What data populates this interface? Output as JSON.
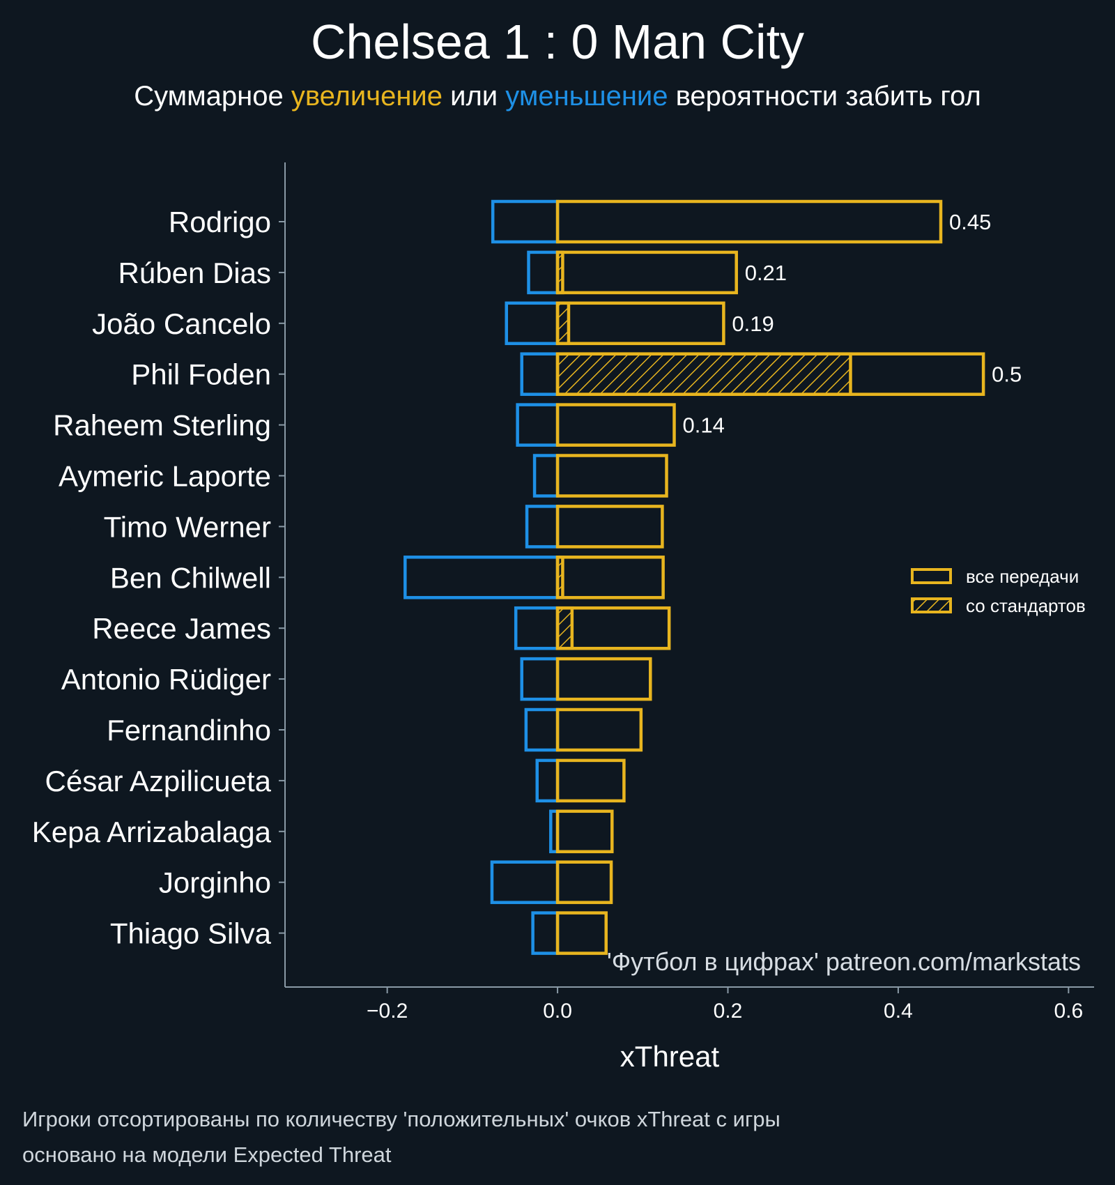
{
  "colors": {
    "background": "#0e1720",
    "increase": "#e8b51f",
    "decrease": "#1e90e6",
    "axis": "#8a9aa6",
    "text": "#ffffff"
  },
  "header": {
    "title": "Chelsea 1 : 0 Man City",
    "subtitle_parts": {
      "prefix": "Суммарное ",
      "increase_word": "увеличение",
      "middle": " или ",
      "decrease_word": "уменьшение",
      "suffix": " вероятности забить гол"
    }
  },
  "legend": {
    "all_passes": "все передачи",
    "set_pieces": "со стандартов"
  },
  "watermark": "'Футбол в цифрах' patreon.com/markstats",
  "footnotes": [
    "Игроки отсортированы по количеству 'положительных' очков xThreat с игры",
    "основано на модели Expected Threat"
  ],
  "chart_data": {
    "type": "bar",
    "orientation": "horizontal",
    "xlabel": "xThreat",
    "xlim": [
      -0.32,
      0.63
    ],
    "xticks": [
      -0.2,
      0.0,
      0.2,
      0.4,
      0.6
    ],
    "xtick_labels": [
      "−0.2",
      "0.0",
      "0.2",
      "0.4",
      "0.6"
    ],
    "categories": [
      "Rodrigo",
      "Rúben Dias",
      "João Cancelo",
      "Phil Foden",
      "Raheem Sterling",
      "Aymeric Laporte",
      "Timo Werner",
      "Ben Chilwell",
      "Reece James",
      "Antonio Rüdiger",
      "Fernandinho",
      "César Azpilicueta",
      "Kepa Arrizabalaga",
      "Jorginho",
      "Thiago Silva"
    ],
    "series": [
      {
        "name": "увеличение (все передачи)",
        "values": [
          0.45,
          0.21,
          0.195,
          0.5,
          0.137,
          0.128,
          0.123,
          0.124,
          0.131,
          0.109,
          0.098,
          0.078,
          0.064,
          0.063,
          0.057
        ]
      },
      {
        "name": "уменьшение",
        "values": [
          -0.076,
          -0.034,
          -0.06,
          -0.042,
          -0.047,
          -0.027,
          -0.036,
          -0.179,
          -0.049,
          -0.042,
          -0.037,
          -0.024,
          -0.008,
          -0.077,
          -0.029
        ]
      },
      {
        "name": "со стандартов",
        "values": [
          0,
          0.006,
          0.013,
          0.344,
          0,
          0,
          0,
          0.006,
          0.017,
          0,
          0,
          0,
          0,
          0,
          0
        ]
      }
    ],
    "value_labels": [
      "0.45",
      "0.21",
      "0.19",
      "0.5",
      "0.14",
      "",
      "",
      "",
      "",
      "",
      "",
      "",
      "",
      "",
      ""
    ]
  }
}
